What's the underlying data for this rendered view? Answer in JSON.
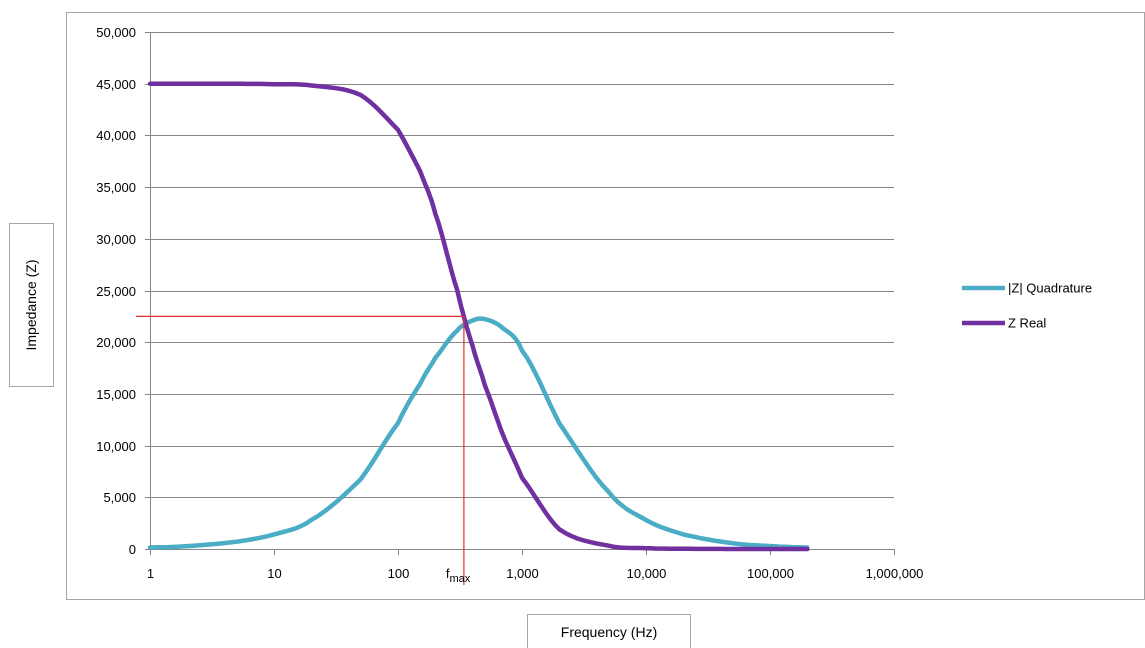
{
  "chart_data": {
    "type": "line",
    "title": "",
    "xlabel": "Frequency (Hz)",
    "ylabel": "Impedance (Z)",
    "x_scale": "log",
    "xlim": [
      1,
      1000000
    ],
    "ylim": [
      0,
      50000
    ],
    "x_ticks": [
      "1",
      "10",
      "100",
      "1,000",
      "10,000",
      "100,000",
      "1,000,000"
    ],
    "y_ticks": [
      "0",
      "5,000",
      "10,000",
      "15,000",
      "20,000",
      "25,000",
      "30,000",
      "35,000",
      "40,000",
      "45,000",
      "50,000"
    ],
    "grid": "horizontal",
    "legend_position": "right",
    "x": [
      1,
      2,
      5,
      10,
      20,
      50,
      100,
      150,
      200,
      300,
      400,
      500,
      700,
      1000,
      2000,
      5000,
      10000,
      20000,
      50000,
      100000,
      200000
    ],
    "series": [
      {
        "name": "|Z| Quadrature",
        "color": "#4bacc6",
        "values": [
          141,
          283,
          706,
          1409,
          2803,
          6748,
          12164,
          15910,
          18478,
          21123,
          22097,
          22230,
          21368,
          19190,
          12164,
          5522,
          2803,
          1409,
          565,
          283,
          141
        ]
      },
      {
        "name": "Z Real",
        "color": "#7030a0",
        "values": [
          45000,
          44998,
          44989,
          44956,
          44825,
          43909,
          40541,
          36603,
          32432,
          25045,
          19615,
          15881,
          11070,
          6882,
          1909,
          318,
          80,
          20,
          3,
          1,
          0
        ]
      }
    ],
    "annotations": [
      {
        "text": "f",
        "subscript": "max",
        "x": 340,
        "y": 22500,
        "marker_color": "#e03030"
      }
    ]
  }
}
